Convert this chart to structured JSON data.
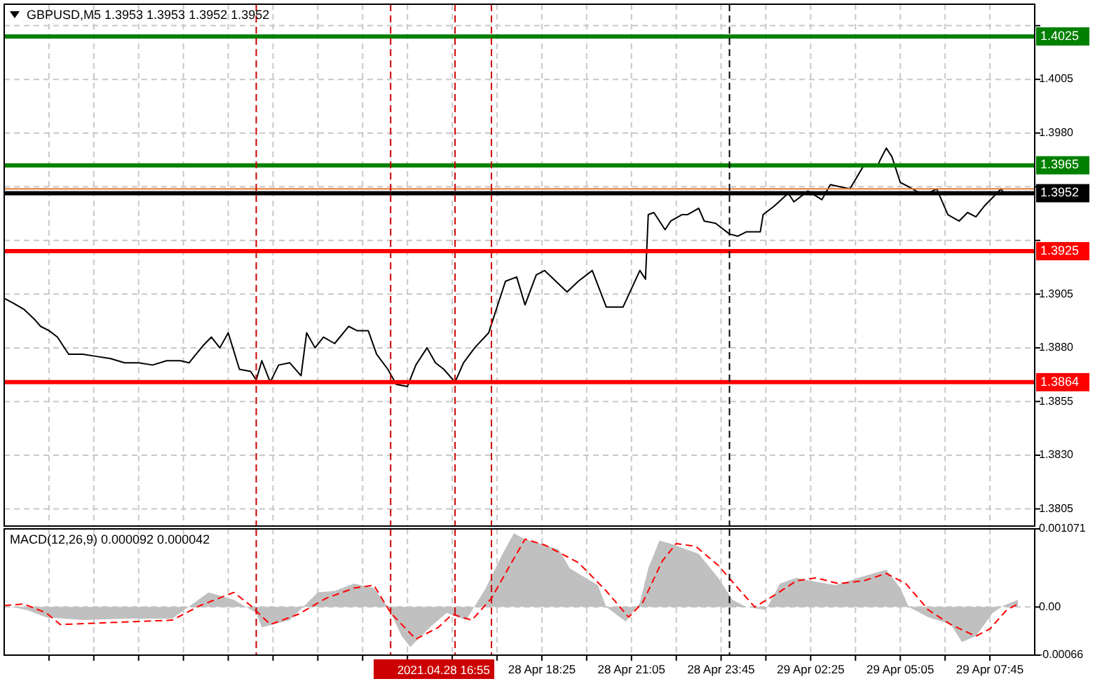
{
  "chart_data": [
    {
      "type": "line",
      "title": "GBPUSD,M5  1.3953 1.3953 1.3952 1.3952",
      "color": "#000000",
      "x": [
        "2021-04-28T02:25",
        "2021-04-28T02:40",
        "2021-04-28T03:00",
        "2021-04-28T03:20",
        "2021-04-28T03:30",
        "2021-04-28T03:45",
        "2021-04-28T04:00",
        "2021-04-28T04:20",
        "2021-04-28T04:45",
        "2021-04-28T05:10",
        "2021-04-28T05:35",
        "2021-04-28T06:00",
        "2021-04-28T06:25",
        "2021-04-28T06:50",
        "2021-04-28T07:15",
        "2021-04-28T07:40",
        "2021-04-28T07:55",
        "2021-04-28T08:20",
        "2021-04-28T08:35",
        "2021-04-28T08:50",
        "2021-04-28T09:05",
        "2021-04-28T09:25",
        "2021-04-28T09:45",
        "2021-04-28T09:55",
        "2021-04-28T10:05",
        "2021-04-28T10:20",
        "2021-04-28T10:35",
        "2021-04-28T10:55",
        "2021-04-28T11:15",
        "2021-04-28T11:25",
        "2021-04-28T11:40",
        "2021-04-28T11:55",
        "2021-04-28T12:15",
        "2021-04-28T12:40",
        "2021-04-28T12:55",
        "2021-04-28T13:15",
        "2021-04-28T13:30",
        "2021-04-28T13:50",
        "2021-04-28T14:05",
        "2021-04-28T14:25",
        "2021-04-28T14:40",
        "2021-04-28T15:00",
        "2021-04-28T15:15",
        "2021-04-28T15:30",
        "2021-04-28T15:50",
        "2021-04-28T16:05",
        "2021-04-28T16:25",
        "2021-04-28T16:50",
        "2021-04-28T17:05",
        "2021-04-28T17:20",
        "2021-04-28T17:40",
        "2021-04-28T17:55",
        "2021-04-28T18:15",
        "2021-04-28T18:30",
        "2021-04-28T19:10",
        "2021-04-28T19:30",
        "2021-04-28T19:55",
        "2021-04-28T20:20",
        "2021-04-28T20:50",
        "2021-04-28T21:20",
        "2021-04-28T21:30",
        "2021-04-28T21:35",
        "2021-04-28T21:45",
        "2021-04-28T21:55",
        "2021-04-28T22:05",
        "2021-04-28T22:15",
        "2021-04-28T22:35",
        "2021-04-28T22:45",
        "2021-04-28T23:05",
        "2021-04-28T23:15",
        "2021-04-28T23:35",
        "2021-04-29T00:00",
        "2021-04-29T00:15",
        "2021-04-29T00:30",
        "2021-04-29T00:55",
        "2021-04-29T01:00",
        "2021-04-29T01:20",
        "2021-04-29T01:45",
        "2021-04-29T01:55",
        "2021-04-29T02:20",
        "2021-04-29T02:45",
        "2021-04-29T03:00",
        "2021-04-29T03:35",
        "2021-04-29T04:00",
        "2021-04-29T04:25",
        "2021-04-29T04:30",
        "2021-04-29T04:40",
        "2021-04-29T04:50",
        "2021-04-29T05:05",
        "2021-04-29T05:20",
        "2021-04-29T05:40",
        "2021-04-29T05:55",
        "2021-04-29T06:10",
        "2021-04-29T06:30",
        "2021-04-29T06:50",
        "2021-04-29T07:05",
        "2021-04-29T07:20",
        "2021-04-29T07:35",
        "2021-04-29T07:50",
        "2021-04-29T08:05",
        "2021-04-29T08:10",
        "2021-04-29T08:35"
      ],
      "values": [
        1.3903,
        1.3901,
        1.3898,
        1.3893,
        1.389,
        1.3888,
        1.3885,
        1.3877,
        1.3877,
        1.3876,
        1.3875,
        1.3873,
        1.3873,
        1.3872,
        1.3874,
        1.3874,
        1.3873,
        1.3881,
        1.3885,
        1.388,
        1.3887,
        1.387,
        1.3869,
        1.3865,
        1.3874,
        1.3864,
        1.3872,
        1.3873,
        1.3867,
        1.3887,
        1.388,
        1.3885,
        1.3882,
        1.389,
        1.3888,
        1.3888,
        1.3877,
        1.387,
        1.3863,
        1.3862,
        1.3872,
        1.388,
        1.3873,
        1.387,
        1.3864,
        1.3873,
        1.388,
        1.3887,
        1.3899,
        1.3911,
        1.3913,
        1.39,
        1.3914,
        1.3916,
        1.3906,
        1.3911,
        1.3916,
        1.3899,
        1.3899,
        1.3916,
        1.3912,
        1.3942,
        1.3943,
        1.3939,
        1.3935,
        1.3939,
        1.3942,
        1.3942,
        1.3945,
        1.3939,
        1.3938,
        1.3933,
        1.3932,
        1.3934,
        1.3934,
        1.3942,
        1.3946,
        1.3952,
        1.3948,
        1.3953,
        1.3949,
        1.3956,
        1.3954,
        1.3965,
        1.3965,
        1.3968,
        1.3973,
        1.3969,
        1.3957,
        1.3955,
        1.3952,
        1.3952,
        1.3954,
        1.3942,
        1.3939,
        1.3943,
        1.3941,
        1.3946,
        1.395,
        1.3954,
        1.3952,
        1.3952
      ],
      "xlim": [
        "2021-04-28T02:25",
        "2021-04-29T09:05"
      ],
      "xticks": [
        {
          "value": "2021-04-28T03:45",
          "label": null
        },
        {
          "value": "2021-04-28T05:05",
          "label": null
        },
        {
          "value": "2021-04-28T06:25",
          "label": null
        },
        {
          "value": "2021-04-28T07:45",
          "label": null
        },
        {
          "value": "2021-04-28T09:05",
          "label": null
        },
        {
          "value": "2021-04-28T10:25",
          "label": null
        },
        {
          "value": "2021-04-28T11:45",
          "label": null
        },
        {
          "value": "2021-04-28T13:05",
          "label": null
        },
        {
          "value": "2021-04-28T14:25",
          "label": null
        },
        {
          "value": "2021-04-28T15:45",
          "label": null
        },
        {
          "value": "2021-04-28T17:05",
          "label": null
        },
        {
          "value": "2021-04-28T18:25",
          "label": null
        },
        {
          "value": "2021-04-28T19:45",
          "label": null
        },
        {
          "value": "2021-04-28T21:05",
          "label": null
        },
        {
          "value": "2021-04-28T22:25",
          "label": null
        },
        {
          "value": "2021-04-28T23:45",
          "label": null
        },
        {
          "value": "2021-04-29T01:05",
          "label": null
        },
        {
          "value": "2021-04-29T02:25",
          "label": null
        },
        {
          "value": "2021-04-29T03:45",
          "label": null
        },
        {
          "value": "2021-04-29T05:05",
          "label": null
        },
        {
          "value": "2021-04-29T06:25",
          "label": null
        },
        {
          "value": "2021-04-29T07:45",
          "label": null
        }
      ],
      "ylim": [
        1.3797,
        1.404
      ],
      "yticks": [
        1.3805,
        {
          "value": 1.383,
          "label": "1.3830"
        },
        1.3855,
        {
          "value": 1.388,
          "label": "1.3880"
        },
        1.3905,
        {
          "value": 1.393,
          "label": null
        },
        {
          "value": 1.3955,
          "label": null
        },
        {
          "value": 1.398,
          "label": "1.3980"
        },
        1.4005,
        {
          "value": 1.403,
          "label": null
        }
      ],
      "grid": true,
      "tick_labels": "y",
      "ref_lines": [
        {
          "axis": "y",
          "value": 1.4025,
          "label": "1.4025",
          "color": "#008000"
        },
        {
          "axis": "y",
          "value": 1.3965,
          "label": "1.3965",
          "color": "#008000"
        },
        {
          "axis": "y",
          "value": 1.3954,
          "color": "#e07830"
        },
        {
          "axis": "y",
          "value": 1.3952,
          "label": "1.3952",
          "color": "#000000"
        },
        {
          "axis": "y",
          "value": 1.3925,
          "label": "1.3925",
          "color": "#ff0000"
        },
        {
          "axis": "y",
          "value": 1.3864,
          "label": "1.3864",
          "color": "#ff0000"
        },
        {
          "axis": "x",
          "value": "2021-04-28T09:55",
          "color": "#cc0000",
          "line_style": "dashed"
        },
        {
          "axis": "x",
          "value": "2021-04-28T13:55",
          "color": "#cc0000",
          "line_style": "dashed"
        },
        {
          "axis": "x",
          "value": "2021-04-28T15:50",
          "color": "#cc0000",
          "line_style": "dashed"
        },
        {
          "axis": "x",
          "value": "2021-04-28T16:55",
          "color": "#cc0000",
          "line_style": "dashed"
        },
        {
          "axis": "x",
          "value": "2021-04-29T00:00",
          "color": "#000000",
          "line_style": "dashed"
        }
      ]
    },
    {
      "type": "area",
      "title": "MACD(12,26,9) 0.000092 0.000042",
      "series": [
        {
          "color": "#c0c0c0",
          "x": [
            "2021-04-28T02:25",
            "2021-04-28T03:05",
            "2021-04-28T03:40",
            "2021-04-28T04:45",
            "2021-04-28T06:00",
            "2021-04-28T07:25",
            "2021-04-28T08:30",
            "2021-04-28T09:15",
            "2021-04-28T09:55",
            "2021-04-28T10:05",
            "2021-04-28T10:55",
            "2021-04-28T11:45",
            "2021-04-28T12:15",
            "2021-04-28T12:50",
            "2021-04-28T13:25",
            "2021-04-28T13:50",
            "2021-04-28T14:15",
            "2021-04-28T14:30",
            "2021-04-28T15:05",
            "2021-04-28T15:35",
            "2021-04-28T16:10",
            "2021-04-28T16:45",
            "2021-04-28T17:15",
            "2021-04-28T17:35",
            "2021-04-28T17:55",
            "2021-04-28T18:55",
            "2021-04-28T19:15",
            "2021-04-28T20:05",
            "2021-04-28T20:20",
            "2021-04-28T20:55",
            "2021-04-28T21:20",
            "2021-04-28T21:35",
            "2021-04-28T21:55",
            "2021-04-28T22:15",
            "2021-04-28T23:05",
            "2021-04-28T23:40",
            "2021-04-29T00:05",
            "2021-04-29T00:30",
            "2021-04-29T01:05",
            "2021-04-29T01:30",
            "2021-04-29T02:00",
            "2021-04-29T02:25",
            "2021-04-29T03:10",
            "2021-04-29T03:50",
            "2021-04-29T04:40",
            "2021-04-29T05:05",
            "2021-04-29T05:20",
            "2021-04-29T05:55",
            "2021-04-29T06:35",
            "2021-04-29T06:55",
            "2021-04-29T07:20",
            "2021-04-29T07:50",
            "2021-04-29T08:10",
            "2021-04-29T08:35"
          ],
          "values": [
            2e-05,
            -4e-05,
            -0.00014,
            -0.00018,
            -0.00016,
            -0.00016,
            0.0002,
            0.0001,
            -8e-05,
            -0.00028,
            -0.00018,
            0.0002,
            0.00022,
            0.00032,
            0.00026,
            0,
            -0.0004,
            -0.00055,
            -0.00028,
            -8e-05,
            -0.00018,
            0.00026,
            0.00073,
            0.00101,
            0.00093,
            0.00079,
            0.00053,
            0.0003,
            0,
            -0.0002,
            6e-05,
            0.00053,
            0.00091,
            0.00087,
            0.00073,
            0.0004,
            0.0001,
            0,
            -4e-05,
            0.00032,
            0.0004,
            0.00036,
            0.0003,
            0.0004,
            0.00051,
            0.00026,
            0,
            -0.00014,
            -0.00024,
            -0.00048,
            -0.0004,
            -8e-05,
            2e-05,
            0.0001
          ]
        },
        {
          "type": "line",
          "color": "#ff0000",
          "line_style": "dashed",
          "x": [
            "2021-04-28T02:25",
            "2021-04-28T03:00",
            "2021-04-28T03:40",
            "2021-04-28T04:05",
            "2021-04-28T07:25",
            "2021-04-28T08:15",
            "2021-04-28T09:15",
            "2021-04-28T09:45",
            "2021-04-28T10:20",
            "2021-04-28T11:10",
            "2021-04-28T12:00",
            "2021-04-28T12:50",
            "2021-04-28T13:25",
            "2021-04-28T13:55",
            "2021-04-28T14:40",
            "2021-04-28T15:20",
            "2021-04-28T15:45",
            "2021-04-28T16:20",
            "2021-04-28T16:55",
            "2021-04-28T17:25",
            "2021-04-28T17:55",
            "2021-04-28T18:30",
            "2021-04-28T19:30",
            "2021-04-28T20:20",
            "2021-04-28T21:00",
            "2021-04-28T21:25",
            "2021-04-28T22:00",
            "2021-04-28T22:25",
            "2021-04-28T23:00",
            "2021-04-28T23:40",
            "2021-04-29T00:15",
            "2021-04-29T00:45",
            "2021-04-29T01:20",
            "2021-04-29T02:00",
            "2021-04-29T02:35",
            "2021-04-29T03:15",
            "2021-04-29T04:00",
            "2021-04-29T04:40",
            "2021-04-29T05:15",
            "2021-04-29T05:55",
            "2021-04-29T06:35",
            "2021-04-29T07:20",
            "2021-04-29T07:45",
            "2021-04-29T08:15",
            "2021-04-29T08:35"
          ],
          "values": [
            2e-05,
            4e-05,
            -8e-05,
            -0.00024,
            -0.00018,
            2e-05,
            0.0002,
            2e-05,
            -0.00024,
            -0.0001,
            0.00012,
            0.00026,
            0.0003,
            -8e-05,
            -0.00044,
            -0.00028,
            -0.0001,
            -0.00018,
            0.00012,
            0.00053,
            0.00093,
            0.00085,
            0.00061,
            0.00022,
            -0.00014,
            6e-05,
            0.00063,
            0.00087,
            0.00083,
            0.00057,
            0.00026,
            0,
            0.00016,
            0.00036,
            0.0004,
            0.00032,
            0.00036,
            0.00046,
            0.00032,
            -4e-05,
            -0.00024,
            -0.0004,
            -0.0003,
            -4e-05,
            4e-05
          ]
        }
      ],
      "xlim": [
        "2021-04-28T02:25",
        "2021-04-29T09:05"
      ],
      "xticks": [
        {
          "value": "2021-04-28T03:45",
          "label": null
        },
        {
          "value": "2021-04-28T05:05",
          "label": null
        },
        {
          "value": "2021-04-28T06:25",
          "label": null
        },
        {
          "value": "2021-04-28T07:45",
          "label": null
        },
        {
          "value": "2021-04-28T09:05",
          "label": null
        },
        {
          "value": "2021-04-28T10:25",
          "label": null
        },
        {
          "value": "2021-04-28T11:45",
          "label": null
        },
        {
          "value": "2021-04-28T13:05",
          "label": null
        },
        {
          "value": "2021-04-28T14:25",
          "label": null
        },
        {
          "value": "2021-04-28T15:45",
          "label": null
        },
        {
          "value": "2021-04-28T17:05",
          "label": null
        },
        {
          "value": "2021-04-28T18:25",
          "label": "28 Apr 18:25"
        },
        {
          "value": "2021-04-28T19:45",
          "label": null
        },
        {
          "value": "2021-04-28T21:05",
          "label": "28 Apr 21:05"
        },
        {
          "value": "2021-04-28T22:25",
          "label": null
        },
        {
          "value": "2021-04-28T23:45",
          "label": "28 Apr 23:45"
        },
        {
          "value": "2021-04-29T01:05",
          "label": null
        },
        {
          "value": "2021-04-29T02:25",
          "label": "29 Apr 02:25"
        },
        {
          "value": "2021-04-29T03:45",
          "label": null
        },
        {
          "value": "2021-04-29T05:05",
          "label": "29 Apr 05:05"
        },
        {
          "value": "2021-04-29T06:25",
          "label": null
        },
        {
          "value": "2021-04-29T07:45",
          "label": "29 Apr 07:45"
        }
      ],
      "ylim": [
        -0.00066,
        0.001071
      ],
      "yticks": [
        {
          "value": -0.00066,
          "label": "-0.00066"
        },
        {
          "value": 0,
          "label": "0.00"
        },
        0.001071
      ],
      "grid": true,
      "ref_lines": [
        {
          "axis": "x",
          "value": "2021-04-28T09:55",
          "color": "#cc0000",
          "line_style": "dashed"
        },
        {
          "axis": "x",
          "value": "2021-04-28T13:55",
          "color": "#cc0000",
          "line_style": "dashed"
        },
        {
          "axis": "x",
          "value": "2021-04-28T15:50",
          "color": "#cc0000",
          "line_style": "dashed"
        },
        {
          "axis": "x",
          "value": "2021-04-28T16:55",
          "label": "2021.04.28 16:55",
          "color": "#cc0000",
          "line_style": "dashed"
        },
        {
          "axis": "x",
          "value": "2021-04-29T00:00",
          "color": "#000000",
          "line_style": "dashed"
        }
      ]
    }
  ]
}
